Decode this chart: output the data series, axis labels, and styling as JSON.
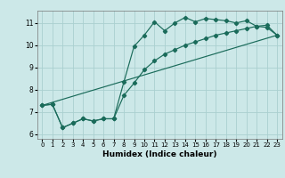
{
  "title": "",
  "xlabel": "Humidex (Indice chaleur)",
  "bg_color": "#cce8e8",
  "grid_color": "#aad0d0",
  "line_color": "#1a6b5a",
  "xlim": [
    -0.5,
    23.5
  ],
  "ylim": [
    5.8,
    11.55
  ],
  "xticks": [
    0,
    1,
    2,
    3,
    4,
    5,
    6,
    7,
    8,
    9,
    10,
    11,
    12,
    13,
    14,
    15,
    16,
    17,
    18,
    19,
    20,
    21,
    22,
    23
  ],
  "yticks": [
    6,
    7,
    8,
    9,
    10,
    11
  ],
  "series1_x": [
    0,
    1,
    2,
    3,
    4,
    5,
    6,
    7,
    8,
    9,
    10,
    11,
    12,
    13,
    14,
    15,
    16,
    17,
    18,
    19,
    20,
    21,
    22,
    23
  ],
  "series1_y": [
    7.3,
    7.35,
    6.3,
    6.5,
    6.7,
    6.6,
    6.7,
    6.7,
    8.35,
    9.95,
    10.45,
    11.05,
    10.65,
    11.0,
    11.25,
    11.05,
    11.2,
    11.15,
    11.1,
    11.0,
    11.1,
    10.85,
    10.8,
    10.45
  ],
  "series2_x": [
    0,
    1,
    2,
    3,
    4,
    5,
    6,
    7,
    8,
    9,
    10,
    11,
    12,
    13,
    14,
    15,
    16,
    17,
    18,
    19,
    20,
    21,
    22,
    23
  ],
  "series2_y": [
    7.3,
    7.35,
    6.3,
    6.5,
    6.7,
    6.6,
    6.7,
    6.7,
    7.75,
    8.3,
    8.9,
    9.3,
    9.6,
    9.8,
    10.0,
    10.15,
    10.3,
    10.45,
    10.55,
    10.65,
    10.75,
    10.85,
    10.9,
    10.45
  ],
  "series3_x": [
    0,
    23
  ],
  "series3_y": [
    7.3,
    10.45
  ]
}
